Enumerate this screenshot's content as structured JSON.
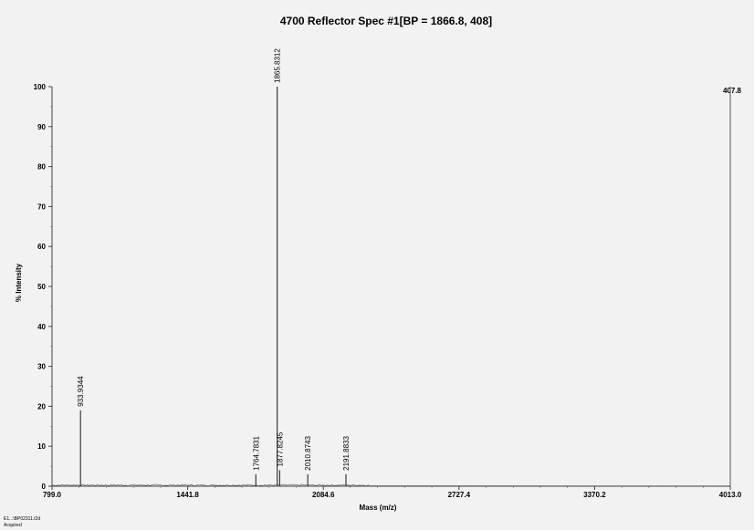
{
  "chart_data": {
    "type": "line",
    "title": "4700 Reflector Spec #1[BP = 1866.8, 408]",
    "xlabel": "Mass (m/z)",
    "ylabel": "% Intensity",
    "xlim": [
      799.0,
      4013.0
    ],
    "ylim": [
      0,
      100
    ],
    "x_ticks": [
      "799.0",
      "1441.8",
      "2084.6",
      "2727.4",
      "3370.2",
      "4013.0"
    ],
    "y_ticks": [
      "0",
      "10",
      "20",
      "30",
      "40",
      "50",
      "60",
      "70",
      "80",
      "90",
      "100"
    ],
    "max_intensity_label": "407.8",
    "grid": false,
    "peaks": [
      {
        "mz": 933.9344,
        "intensity": 19,
        "label": "933.9344"
      },
      {
        "mz": 1764.7831,
        "intensity": 3,
        "label": "1764.7831"
      },
      {
        "mz": 1865.8312,
        "intensity": 100,
        "label": "1865.8312"
      },
      {
        "mz": 1877.8245,
        "intensity": 4,
        "label": "1877.8245"
      },
      {
        "mz": 2010.8743,
        "intensity": 3,
        "label": "2010.8743"
      },
      {
        "mz": 2191.8833,
        "intensity": 3,
        "label": "2191.8833"
      }
    ]
  },
  "footer": {
    "line1": "E1...\\BP02311.t2d",
    "line2": "Acquired"
  }
}
